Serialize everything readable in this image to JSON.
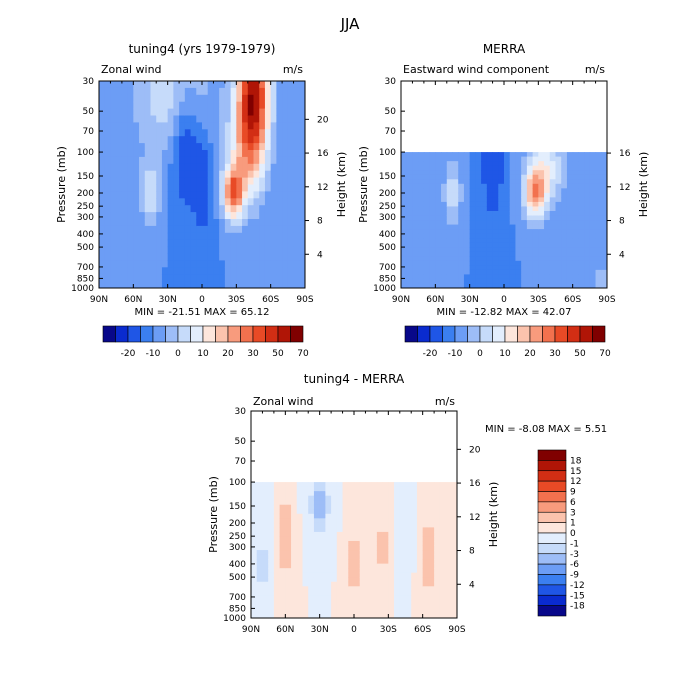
{
  "title": "JJA",
  "chart_data": [
    {
      "type": "heatmap",
      "title": "tuning4 (yrs 1979-1979)",
      "field_label": "Zonal wind",
      "units": "m/s",
      "xlabel": "",
      "ylabel": "Pressure (mb)",
      "y2label": "Height (km)",
      "x_ticks": [
        "90N",
        "60N",
        "30N",
        "0",
        "30S",
        "60S",
        "90S"
      ],
      "y_ticks": [
        "30",
        "50",
        "70",
        "100",
        "150",
        "200",
        "250",
        "300",
        "400",
        "500",
        "700",
        "850",
        "1000"
      ],
      "y2_ticks": [
        "20",
        "16",
        "12",
        "8",
        "4"
      ],
      "x_range": [
        90,
        -90
      ],
      "y_range": [
        1000,
        30
      ],
      "data_top_mb": 30,
      "stats": "MIN =  -21.51   MAX =  65.12",
      "min": -21.51,
      "max": 65.12,
      "levels": [
        "-20",
        "-10",
        "0",
        "10",
        "20",
        "30",
        "50",
        "70"
      ],
      "colorbar_colors": [
        "#08088a",
        "#0a2bcf",
        "#1f56e6",
        "#3b7ff0",
        "#6c9df5",
        "#9dbdf7",
        "#c6dbfa",
        "#e3eefd",
        "#fde6dc",
        "#fbc3ad",
        "#f89b7d",
        "#f2714e",
        "#e84a26",
        "#d22e14",
        "#b01506",
        "#800000"
      ],
      "jets": [
        {
          "lat": 25,
          "p": 40,
          "value": 18,
          "sx": 35,
          "sy": 1.0
        },
        {
          "lat": -45,
          "p": 35,
          "value": 62,
          "sx": 14,
          "sy": 1.0
        },
        {
          "lat": -27,
          "p": 200,
          "value": 45,
          "sx": 9,
          "sy": 0.45
        },
        {
          "lat": -40,
          "p": 100,
          "value": 30,
          "sx": 16,
          "sy": 0.9
        },
        {
          "lat": 45,
          "p": 200,
          "value": 18,
          "sx": 9,
          "sy": 0.55
        },
        {
          "lat": 15,
          "p": 80,
          "value": -18,
          "sx": 12,
          "sy": 1.0
        },
        {
          "lat": 0,
          "p": 150,
          "value": -10,
          "sx": 10,
          "sy": 1.2
        }
      ]
    },
    {
      "type": "heatmap",
      "title": "MERRA",
      "field_label": "Eastward wind component",
      "units": "m/s",
      "xlabel": "",
      "ylabel": "Pressure (mb)",
      "y2label": "Height (km)",
      "x_ticks": [
        "90N",
        "60N",
        "30N",
        "0",
        "30S",
        "60S",
        "90S"
      ],
      "y_ticks": [
        "30",
        "50",
        "70",
        "100",
        "150",
        "200",
        "250",
        "300",
        "400",
        "500",
        "700",
        "850",
        "1000"
      ],
      "y2_ticks": [
        "16",
        "12",
        "8",
        "4"
      ],
      "x_range": [
        90,
        -90
      ],
      "y_range": [
        1000,
        30
      ],
      "data_top_mb": 100,
      "stats": "MIN =  -12.82   MAX =  42.07",
      "min": -12.82,
      "max": 42.07,
      "levels": [
        "-20",
        "-10",
        "0",
        "10",
        "20",
        "30",
        "50",
        "70"
      ],
      "colorbar_colors": [
        "#08088a",
        "#0a2bcf",
        "#1f56e6",
        "#3b7ff0",
        "#6c9df5",
        "#9dbdf7",
        "#c6dbfa",
        "#e3eefd",
        "#fde6dc",
        "#fbc3ad",
        "#f89b7d",
        "#f2714e",
        "#e84a26",
        "#d22e14",
        "#b01506",
        "#800000"
      ],
      "jets": [
        {
          "lat": -27,
          "p": 200,
          "value": 38,
          "sx": 10,
          "sy": 0.45
        },
        {
          "lat": -38,
          "p": 130,
          "value": 20,
          "sx": 16,
          "sy": 0.6
        },
        {
          "lat": 45,
          "p": 200,
          "value": 16,
          "sx": 8,
          "sy": 0.55
        },
        {
          "lat": 10,
          "p": 130,
          "value": -12,
          "sx": 10,
          "sy": 1.0
        },
        {
          "lat": -85,
          "p": 850,
          "value": 10,
          "sx": 6,
          "sy": 0.3
        }
      ]
    },
    {
      "type": "heatmap",
      "title": "tuning4 - MERRA",
      "field_label": "Zonal wind",
      "units": "m/s",
      "xlabel": "",
      "ylabel": "Pressure (mb)",
      "y2label": "Height (km)",
      "x_ticks": [
        "90N",
        "60N",
        "30N",
        "0",
        "30S",
        "60S",
        "90S"
      ],
      "y_ticks": [
        "30",
        "50",
        "70",
        "100",
        "150",
        "200",
        "250",
        "300",
        "400",
        "500",
        "700",
        "850",
        "1000"
      ],
      "y2_ticks": [
        "20",
        "16",
        "12",
        "8",
        "4"
      ],
      "x_range": [
        90,
        -90
      ],
      "y_range": [
        1000,
        30
      ],
      "data_top_mb": 100,
      "stats": "MIN =   -8.08   MAX =   5.51",
      "min": -8.08,
      "max": 5.51,
      "levels": [
        "18",
        "15",
        "12",
        "9",
        "6",
        "3",
        "1",
        "0",
        "-1",
        "-3",
        "-6",
        "-9",
        "-12",
        "-15",
        "-18"
      ],
      "colorbar_colors": [
        "#800000",
        "#b01506",
        "#d22e14",
        "#e84a26",
        "#f2714e",
        "#f89b7d",
        "#fbc3ad",
        "#fde6dc",
        "#e3eefd",
        "#c6dbfa",
        "#9dbdf7",
        "#6c9df5",
        "#3b7ff0",
        "#1f56e6",
        "#0a2bcf",
        "#08088a"
      ],
      "jets": [
        {
          "lat": 60,
          "p": 250,
          "value": 4,
          "sx": 6,
          "sy": 0.9
        },
        {
          "lat": 30,
          "p": 150,
          "value": -6,
          "sx": 8,
          "sy": 0.5
        },
        {
          "lat": 0,
          "p": 400,
          "value": 4,
          "sx": 6,
          "sy": 0.6
        },
        {
          "lat": -25,
          "p": 300,
          "value": 4,
          "sx": 5,
          "sy": 0.5
        },
        {
          "lat": -45,
          "p": 200,
          "value": -2,
          "sx": 5,
          "sy": 0.7
        },
        {
          "lat": -65,
          "p": 350,
          "value": 4,
          "sx": 6,
          "sy": 0.8
        },
        {
          "lat": 80,
          "p": 400,
          "value": -3,
          "sx": 6,
          "sy": 0.8
        }
      ]
    }
  ]
}
